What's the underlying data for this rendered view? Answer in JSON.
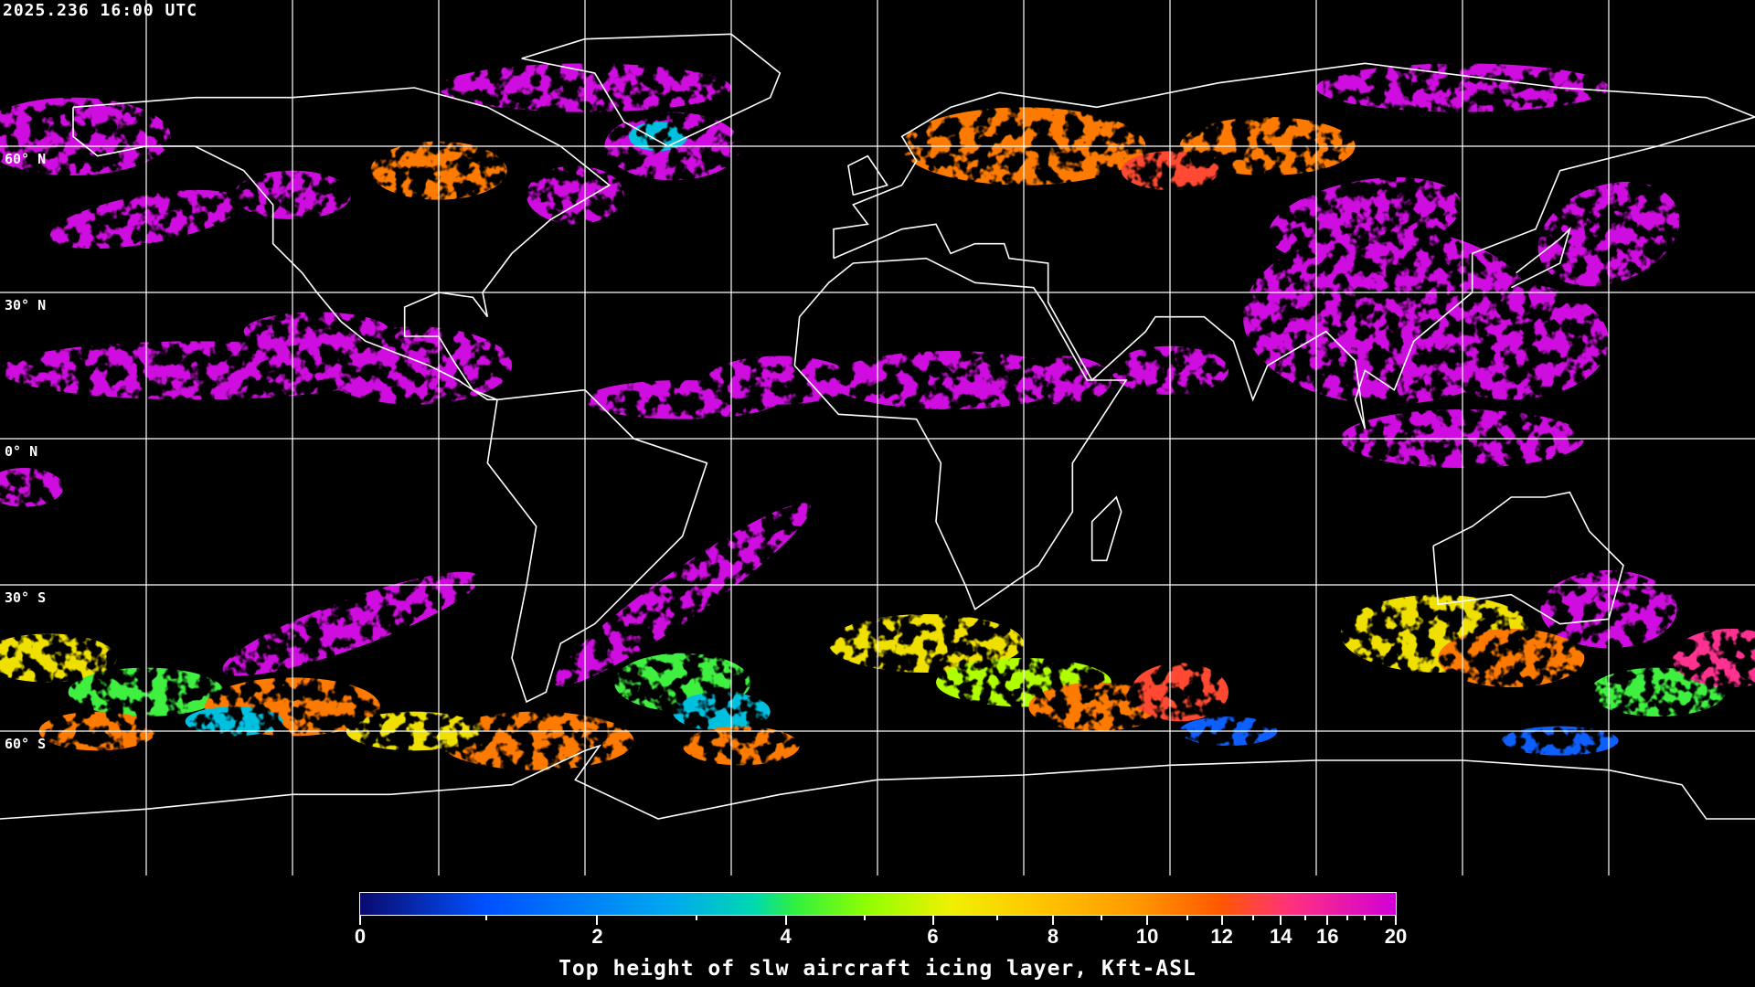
{
  "header": {
    "timestamp": "2025.236 16:00 UTC"
  },
  "map": {
    "projection": "equirectangular",
    "lat_labels": [
      "60° N",
      "30° N",
      "0° N",
      "30° S",
      "60° S"
    ],
    "lat_values": [
      60,
      30,
      0,
      -30,
      -60
    ],
    "grid_color": "#ffffff",
    "coastline_color": "#ffffff",
    "background": "#000000"
  },
  "colorbar": {
    "title": "Top height of slw aircraft icing layer, Kft-ASL",
    "min": 0,
    "max": 20,
    "tick_labels": [
      "0",
      "2",
      "4",
      "6",
      "8",
      "10",
      "12",
      "14",
      "16",
      "20"
    ],
    "tick_values": [
      0,
      2,
      4,
      6,
      8,
      10,
      12,
      14,
      16,
      20
    ],
    "colors": [
      "#0a0a6e",
      "#0050ff",
      "#00a8f0",
      "#00d8b0",
      "#30f040",
      "#90ff00",
      "#f0f000",
      "#ffc800",
      "#ff9800",
      "#ff5800",
      "#ff3080",
      "#d000d8"
    ]
  }
}
